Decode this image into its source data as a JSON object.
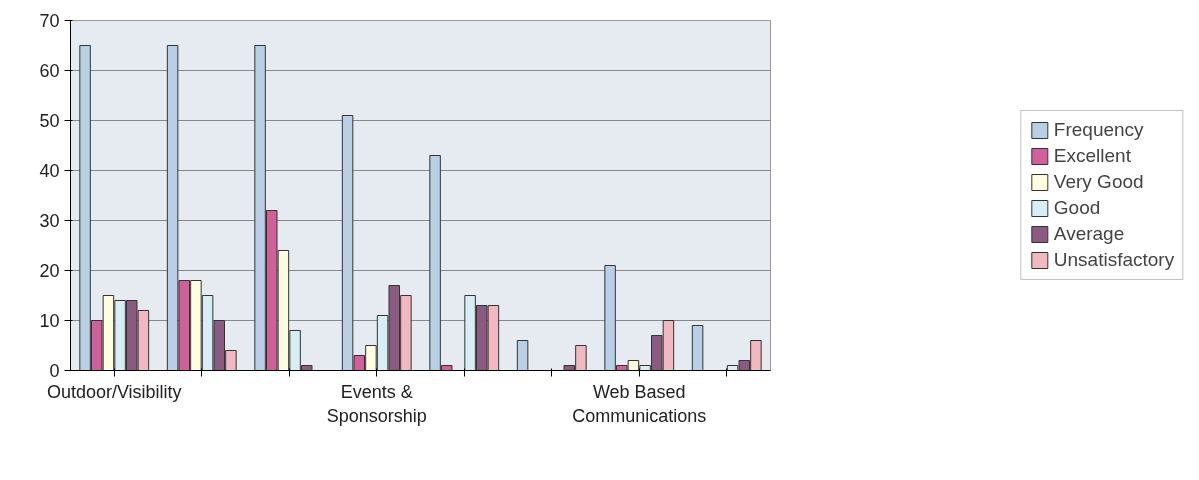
{
  "chart_data": {
    "type": "bar",
    "categories": [
      "Outdoor/Visibility",
      null,
      null,
      "Events & Sponsorship",
      null,
      null,
      "Web Based Communications",
      null
    ],
    "series": [
      {
        "name": "Frequency",
        "color": "#b8cfe6",
        "values": [
          65,
          65,
          65,
          51,
          43,
          6,
          21,
          9
        ]
      },
      {
        "name": "Excellent",
        "color": "#d0609a",
        "values": [
          10,
          18,
          32,
          3,
          1,
          0,
          1,
          0
        ]
      },
      {
        "name": "Very Good",
        "color": "#fffde0",
        "values": [
          15,
          18,
          24,
          5,
          0,
          0,
          2,
          0
        ]
      },
      {
        "name": "Good",
        "color": "#d8eef6",
        "values": [
          14,
          15,
          8,
          11,
          15,
          0,
          1,
          1
        ]
      },
      {
        "name": "Average",
        "color": "#8a5a80",
        "values": [
          14,
          10,
          1,
          17,
          13,
          1,
          7,
          2
        ]
      },
      {
        "name": "Unsatisfactory",
        "color": "#f2b8c0",
        "values": [
          12,
          4,
          0,
          15,
          13,
          5,
          10,
          6
        ]
      }
    ],
    "ylim": [
      0,
      70
    ],
    "yticks": [
      0,
      10,
      20,
      30,
      40,
      50,
      60,
      70
    ],
    "grid": "y",
    "legend": "right"
  }
}
